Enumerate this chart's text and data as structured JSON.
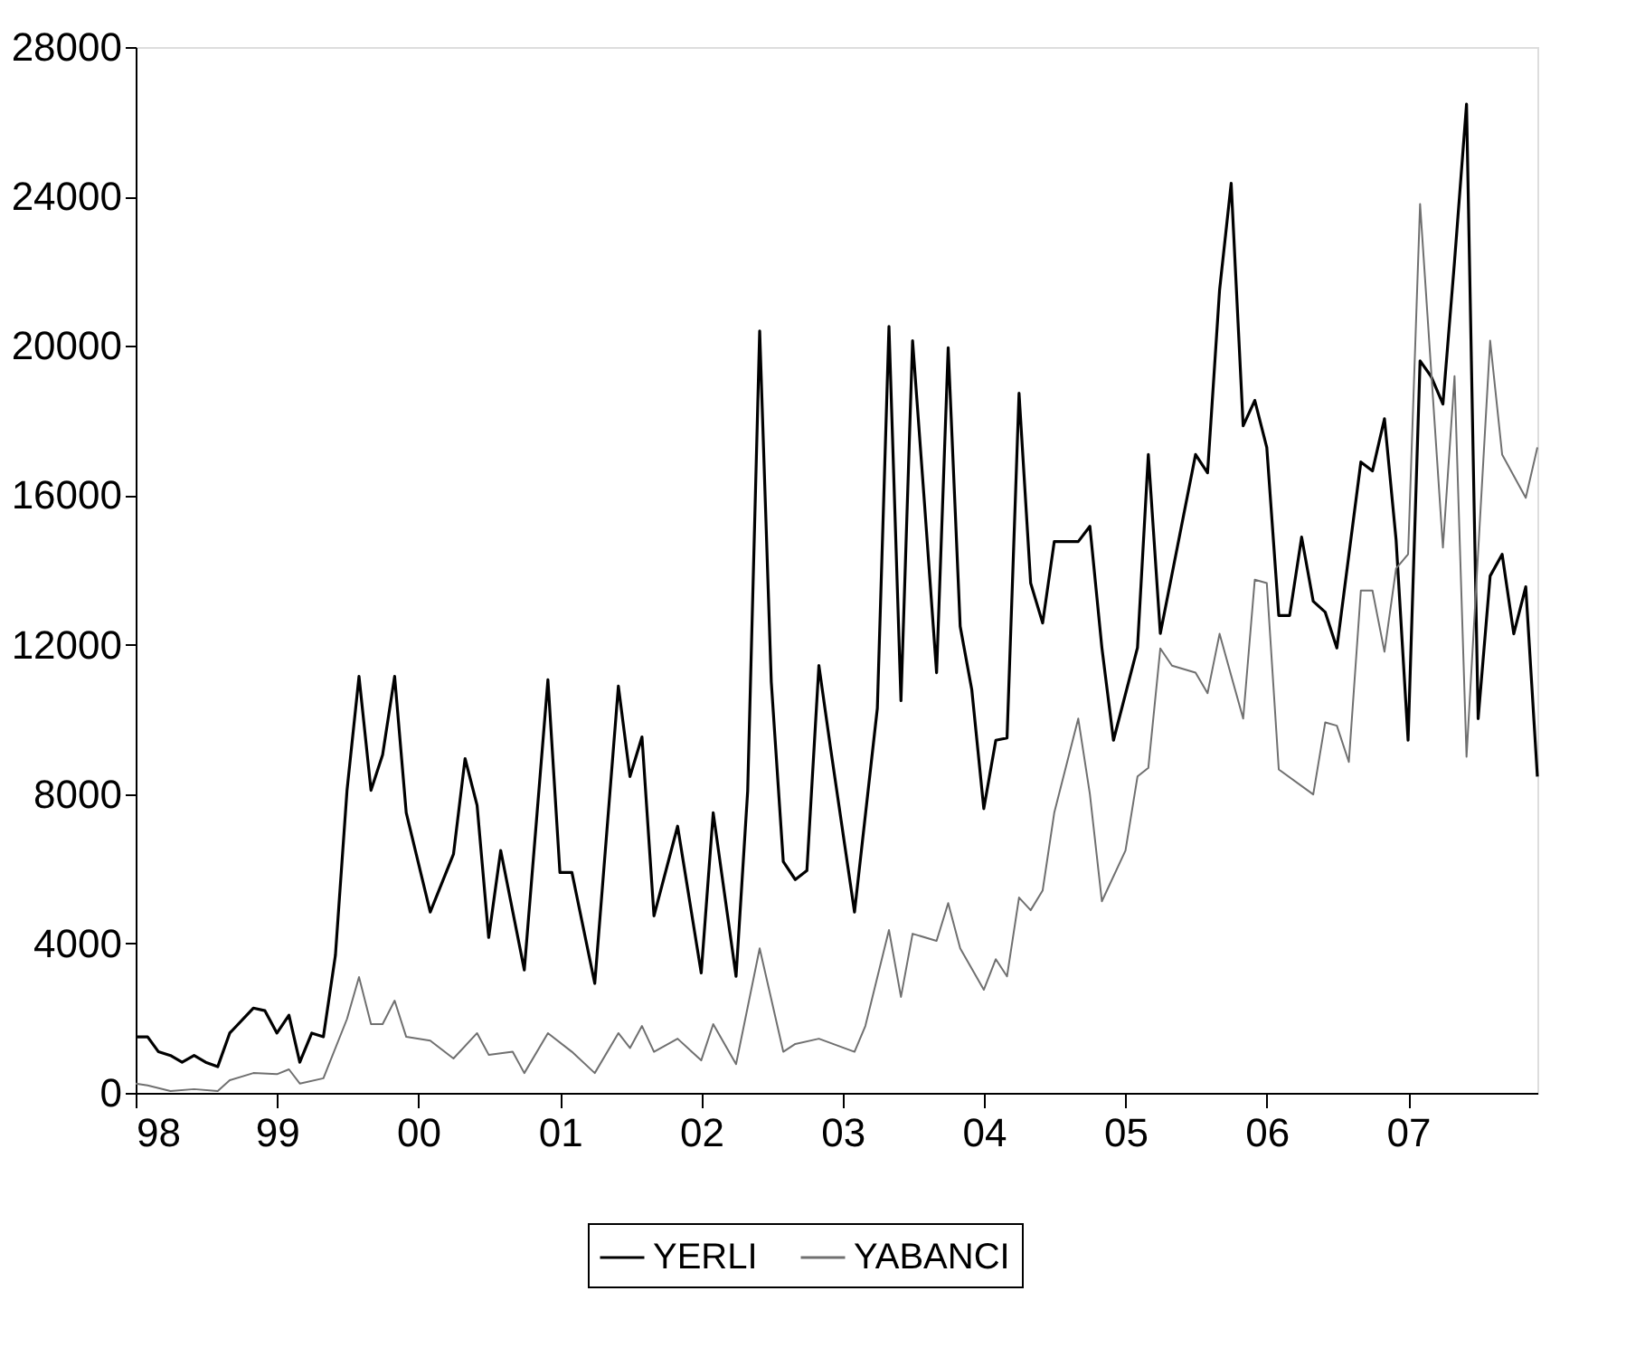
{
  "chart_data": {
    "type": "line",
    "xlim": [
      "1998-01",
      "2007-12"
    ],
    "xticks": [
      {
        "value": "1998-01",
        "label": "98"
      },
      {
        "value": "1999-01",
        "label": "99"
      },
      {
        "value": "2000-01",
        "label": "00"
      },
      {
        "value": "2001-01",
        "label": "01"
      },
      {
        "value": "2002-01",
        "label": "02"
      },
      {
        "value": "2003-01",
        "label": "03"
      },
      {
        "value": "2004-01",
        "label": "04"
      },
      {
        "value": "2005-01",
        "label": "05"
      },
      {
        "value": "2006-01",
        "label": "06"
      },
      {
        "value": "2007-01",
        "label": "07"
      }
    ],
    "ylim": [
      0,
      28000
    ],
    "yticks": [
      0,
      4000,
      8000,
      12000,
      16000,
      20000,
      24000,
      28000
    ],
    "legend": "bottom",
    "grid": false,
    "series": [
      {
        "name": "YERLI",
        "color": "#000000",
        "x": [
          "1998-01",
          "1998-02",
          "1998-03",
          "1998-04",
          "1998-05",
          "1998-06",
          "1998-07",
          "1998-08",
          "1998-09",
          "1998-11",
          "1998-12",
          "1999-01",
          "1999-02",
          "1999-03",
          "1999-04",
          "1999-05",
          "1999-06",
          "1999-07",
          "1999-08",
          "1999-09",
          "1999-10",
          "1999-11",
          "1999-12",
          "2000-02",
          "2000-04",
          "2000-05",
          "2000-06",
          "2000-07",
          "2000-08",
          "2000-10",
          "2000-12",
          "2001-01",
          "2001-02",
          "2001-04",
          "2001-06",
          "2001-07",
          "2001-08",
          "2001-09",
          "2001-11",
          "2002-01",
          "2002-02",
          "2002-04",
          "2002-05",
          "2002-06",
          "2002-07",
          "2002-08",
          "2002-09",
          "2002-10",
          "2002-11",
          "2002-12",
          "2003-02",
          "2003-04",
          "2003-05",
          "2003-06",
          "2003-07",
          "2003-08",
          "2003-09",
          "2003-10",
          "2003-11",
          "2003-12",
          "2004-01",
          "2004-02",
          "2004-03",
          "2004-04",
          "2004-05",
          "2004-06",
          "2004-07",
          "2004-09",
          "2004-10",
          "2004-11",
          "2004-12",
          "2005-02",
          "2005-03",
          "2005-04",
          "2005-07",
          "2005-08",
          "2005-09",
          "2005-10",
          "2005-11",
          "2005-12",
          "2006-01",
          "2006-02",
          "2006-03",
          "2006-04",
          "2006-05",
          "2006-06",
          "2006-07",
          "2006-09",
          "2006-10",
          "2006-11",
          "2006-12",
          "2007-01",
          "2007-02",
          "2007-03",
          "2007-04",
          "2007-05",
          "2007-06",
          "2007-07",
          "2007-08",
          "2007-09",
          "2007-10",
          "2007-11",
          "2007-12"
        ],
        "values": [
          1500,
          1500,
          1100,
          1000,
          820,
          1000,
          820,
          700,
          1600,
          2270,
          2200,
          1600,
          2080,
          820,
          1600,
          1500,
          3680,
          8100,
          11150,
          8100,
          9050,
          11150,
          7500,
          4840,
          6390,
          8950,
          7700,
          4160,
          6490,
          3290,
          11060,
          5900,
          5900,
          2930,
          10890,
          8470,
          9530,
          4740,
          7140,
          3210,
          7500,
          3120,
          8080,
          20400,
          11000,
          6190,
          5710,
          5950,
          11440,
          9240,
          4840,
          10300,
          20520,
          10500,
          20140,
          15750,
          11250,
          19950,
          12490,
          10790,
          7610,
          9440,
          9500,
          18730,
          13650,
          12580,
          14760,
          14760,
          15170,
          11920,
          9440,
          11920,
          17090,
          12300,
          17090,
          16600,
          21490,
          24350,
          17860,
          18540,
          17280,
          12780,
          12780,
          14880,
          13160,
          12870,
          11910,
          16890,
          16650,
          18050,
          14810,
          9440,
          19600,
          19190,
          18440,
          22260,
          26470,
          10020,
          13840,
          14420,
          12290,
          13550,
          8470
        ]
      },
      {
        "name": "YABANCI",
        "color": "#707070",
        "x": [
          "1998-01",
          "1998-02",
          "1998-04",
          "1998-06",
          "1998-08",
          "1998-09",
          "1998-11",
          "1999-01",
          "1999-02",
          "1999-03",
          "1999-05",
          "1999-07",
          "1999-08",
          "1999-09",
          "1999-10",
          "1999-11",
          "1999-12",
          "2000-02",
          "2000-04",
          "2000-06",
          "2000-07",
          "2000-09",
          "2000-10",
          "2000-12",
          "2001-02",
          "2001-04",
          "2001-06",
          "2001-07",
          "2001-08",
          "2001-09",
          "2001-11",
          "2002-01",
          "2002-02",
          "2002-04",
          "2002-06",
          "2002-08",
          "2002-09",
          "2002-11",
          "2003-02",
          "2003-03",
          "2003-05",
          "2003-06",
          "2003-07",
          "2003-09",
          "2003-10",
          "2003-11",
          "2004-01",
          "2004-02",
          "2004-03",
          "2004-04",
          "2004-05",
          "2004-06",
          "2004-07",
          "2004-09",
          "2004-10",
          "2004-11",
          "2005-01",
          "2005-02",
          "2005-03",
          "2005-04",
          "2005-05",
          "2005-07",
          "2005-08",
          "2005-09",
          "2005-11",
          "2005-12",
          "2006-01",
          "2006-02",
          "2006-05",
          "2006-06",
          "2006-07",
          "2006-08",
          "2006-09",
          "2006-10",
          "2006-11",
          "2006-12",
          "2007-01",
          "2007-02",
          "2007-04",
          "2007-05",
          "2007-06",
          "2007-08",
          "2007-09",
          "2007-11",
          "2007-12"
        ],
        "values": [
          250,
          200,
          50,
          100,
          50,
          340,
          530,
          500,
          630,
          250,
          390,
          1980,
          3100,
          1840,
          1840,
          2470,
          1500,
          1400,
          920,
          1600,
          1020,
          1100,
          530,
          1600,
          1100,
          530,
          1600,
          1200,
          1790,
          1100,
          1450,
          870,
          1840,
          770,
          3870,
          1100,
          1310,
          1450,
          1100,
          1790,
          4360,
          2570,
          4260,
          4070,
          5080,
          3870,
          2760,
          3580,
          3120,
          5230,
          4890,
          5420,
          7500,
          10020,
          8000,
          5130,
          6490,
          8470,
          8700,
          11900,
          11440,
          11250,
          10700,
          12290,
          10020,
          13740,
          13650,
          8660,
          7990,
          9920,
          9830,
          8860,
          13450,
          13450,
          11810,
          14040,
          14420,
          23800,
          14600,
          19190,
          9000,
          20140,
          17090,
          15930,
          17280
        ]
      }
    ]
  }
}
